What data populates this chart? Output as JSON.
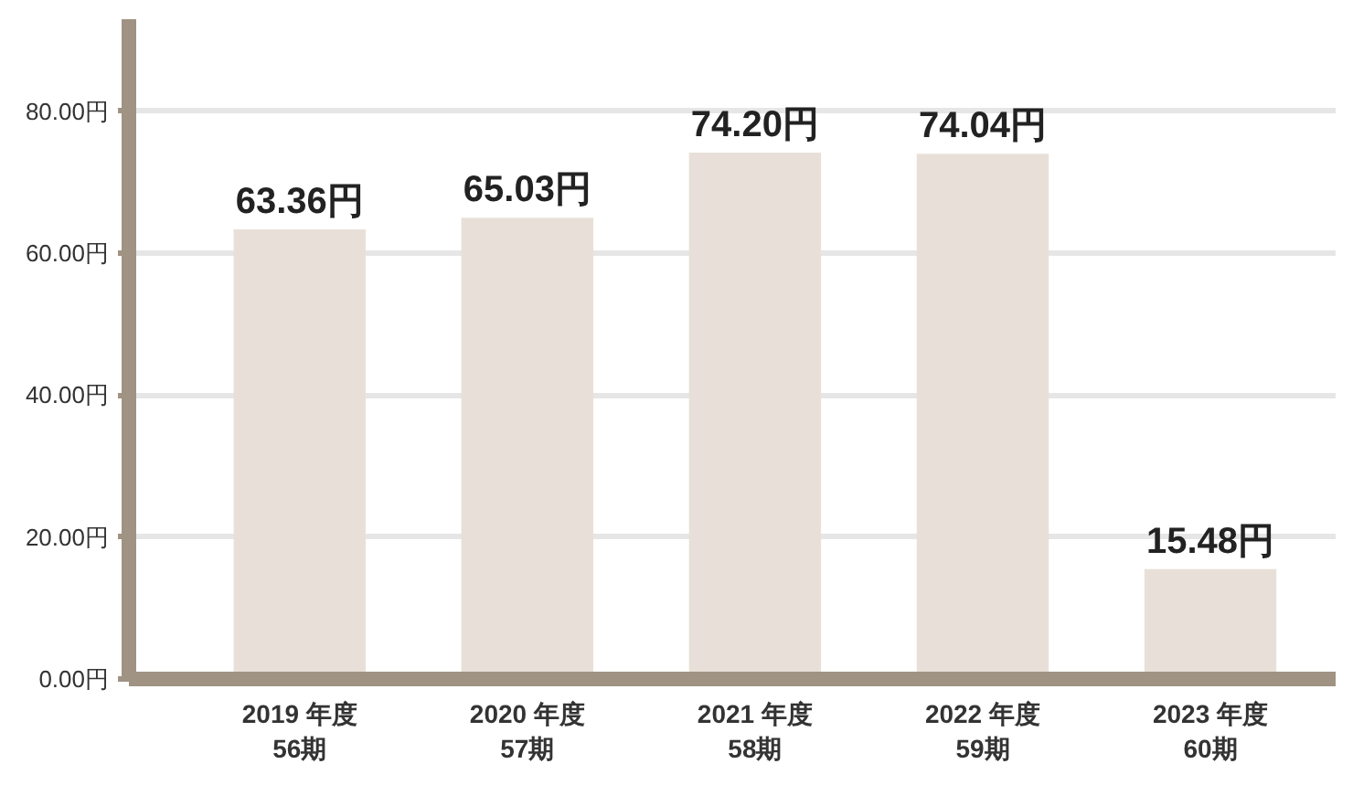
{
  "chart_data": {
    "type": "bar",
    "categories": [
      "2019 年度\n56期",
      "2020 年度\n57期",
      "2021 年度\n58期",
      "2022 年度\n59期",
      "2023 年度\n60期"
    ],
    "values": [
      63.36,
      65.03,
      74.2,
      74.04,
      15.48
    ],
    "color": "#e8e0d8",
    "value_labels": [
      "63.36円",
      "65.03円",
      "74.20円",
      "74.04円",
      "15.48円"
    ],
    "ylim": [
      0,
      93
    ],
    "yticks": [
      {
        "value": 0,
        "label": "0.00円"
      },
      {
        "value": 20,
        "label": "20.00円"
      },
      {
        "value": 40,
        "label": "40.00円"
      },
      {
        "value": 60,
        "label": "60.00円"
      },
      {
        "value": 80,
        "label": "80.00円"
      }
    ],
    "grid": "y"
  }
}
